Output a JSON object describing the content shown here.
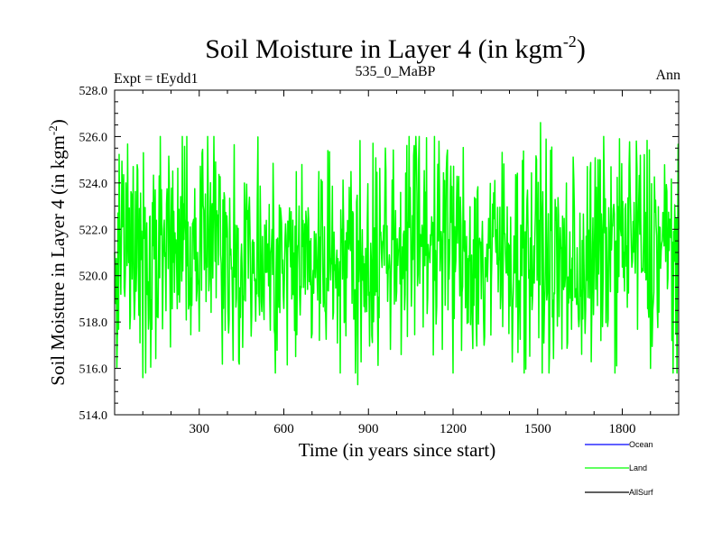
{
  "chart_data": {
    "type": "line",
    "title": "Soil Moisture in Layer 4 (in kgm",
    "title_sup": "-2",
    "title_end": ")",
    "left_label": "Expt = tEydd1",
    "center_label": "535_0_MaBP",
    "right_label": "Ann",
    "xlabel": "Time (in years since start)",
    "ylabel": "Soil Moisture in Layer 4 (in kgm",
    "ylabel_sup": "-2",
    "ylabel_end": ")",
    "xlim": [
      0,
      2000
    ],
    "ylim": [
      514.0,
      528.0
    ],
    "x_ticks": [
      300,
      600,
      900,
      1200,
      1500,
      1800
    ],
    "x_tick_labels": [
      "300",
      "600",
      "900",
      "1200",
      "1500",
      "1800"
    ],
    "y_ticks": [
      514.0,
      516.0,
      518.0,
      520.0,
      522.0,
      524.0,
      526.0,
      528.0
    ],
    "y_tick_labels": [
      "514.0",
      "516.0",
      "518.0",
      "520.0",
      "522.0",
      "524.0",
      "526.0",
      "528.0"
    ],
    "series_style": {
      "mean": 521.0,
      "amplitude": 4.6,
      "visual_min": 515.2,
      "visual_max": 526.6
    },
    "series": [
      {
        "name": "Ocean",
        "color": "#0000ff",
        "values": []
      },
      {
        "name": "Land",
        "color": "#00ff00",
        "values": [
          {
            "x": 0,
            "y": 521.0
          },
          {
            "x": 10,
            "y": 517.6
          },
          {
            "x": 30,
            "y": 523.5
          },
          {
            "x": 40,
            "y": 524.0
          },
          {
            "x": 75,
            "y": 525.0
          },
          {
            "x": 90,
            "y": 517.1
          },
          {
            "x": 100,
            "y": 515.6
          },
          {
            "x": 300,
            "y": 517.6
          },
          {
            "x": 440,
            "y": 516.3
          },
          {
            "x": 700,
            "y": 517.5
          },
          {
            "x": 815,
            "y": 515.7
          },
          {
            "x": 862,
            "y": 515.3
          },
          {
            "x": 960,
            "y": 525.5
          },
          {
            "x": 1080,
            "y": 526.0
          },
          {
            "x": 1150,
            "y": 525.8
          },
          {
            "x": 1310,
            "y": 517.0
          },
          {
            "x": 1510,
            "y": 526.6
          },
          {
            "x": 1720,
            "y": 525.0
          },
          {
            "x": 1900,
            "y": 516.0
          },
          {
            "x": 1985,
            "y": 526.3
          },
          {
            "x": 2000,
            "y": 522.0
          }
        ]
      },
      {
        "name": "AllSurf",
        "color": "#000000",
        "values": []
      }
    ],
    "legend_placement": "bottom-right"
  }
}
